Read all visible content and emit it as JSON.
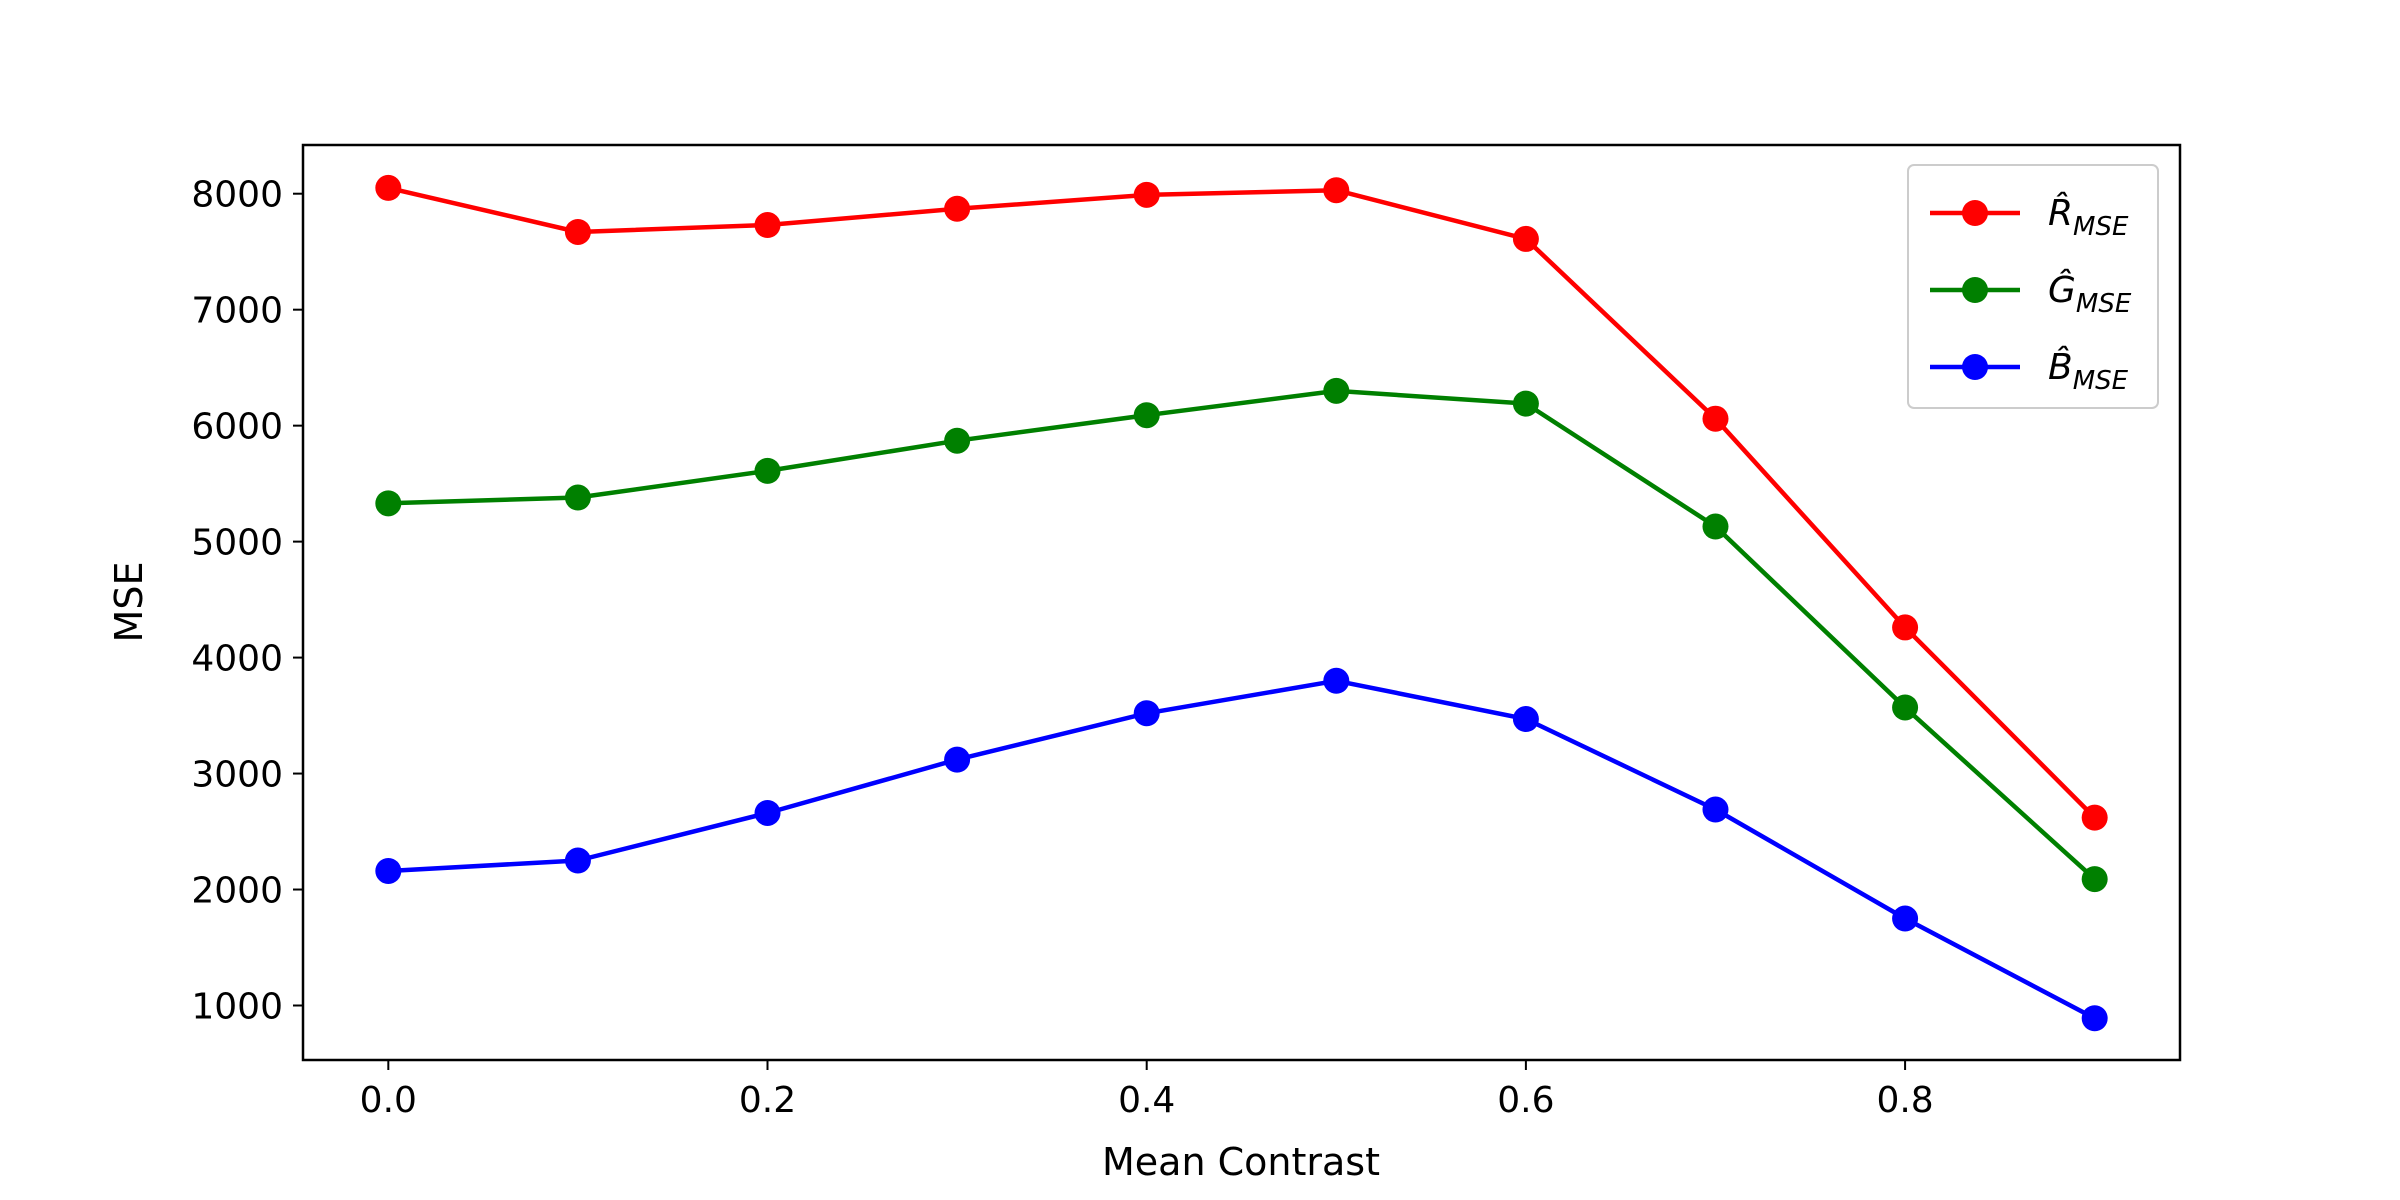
{
  "chart_data": {
    "type": "line",
    "title": "",
    "xlabel": "Mean Contrast",
    "ylabel": "MSE",
    "xlim": [
      -0.045,
      0.945
    ],
    "ylim": [
      530,
      8420
    ],
    "x": [
      0.0,
      0.1,
      0.2,
      0.3,
      0.4,
      0.5,
      0.6,
      0.7,
      0.8,
      0.9
    ],
    "xticks": [
      0.0,
      0.2,
      0.4,
      0.6,
      0.8
    ],
    "xtick_labels": [
      "0.0",
      "0.2",
      "0.4",
      "0.6",
      "0.8"
    ],
    "yticks": [
      1000,
      2000,
      3000,
      4000,
      5000,
      6000,
      7000,
      8000
    ],
    "ytick_labels": [
      "1000",
      "2000",
      "3000",
      "4000",
      "5000",
      "6000",
      "7000",
      "8000"
    ],
    "grid": false,
    "legend_position": "top-right",
    "series": [
      {
        "name": "R̂_MSE",
        "legend_main": "R̂",
        "legend_sub": "MSE",
        "color": "#ff0000",
        "values": [
          8050,
          7670,
          7730,
          7870,
          7990,
          8030,
          7610,
          6060,
          4260,
          2620
        ]
      },
      {
        "name": "Ĝ_MSE",
        "legend_main": "Ĝ",
        "legend_sub": "MSE",
        "color": "#008000",
        "values": [
          5330,
          5380,
          5610,
          5870,
          6090,
          6300,
          6190,
          5130,
          3570,
          2090
        ]
      },
      {
        "name": "B̂_MSE",
        "legend_main": "B̂",
        "legend_sub": "MSE",
        "color": "#0000ff",
        "values": [
          2160,
          2250,
          2660,
          3120,
          3520,
          3800,
          3470,
          2690,
          1750,
          890
        ]
      }
    ]
  }
}
